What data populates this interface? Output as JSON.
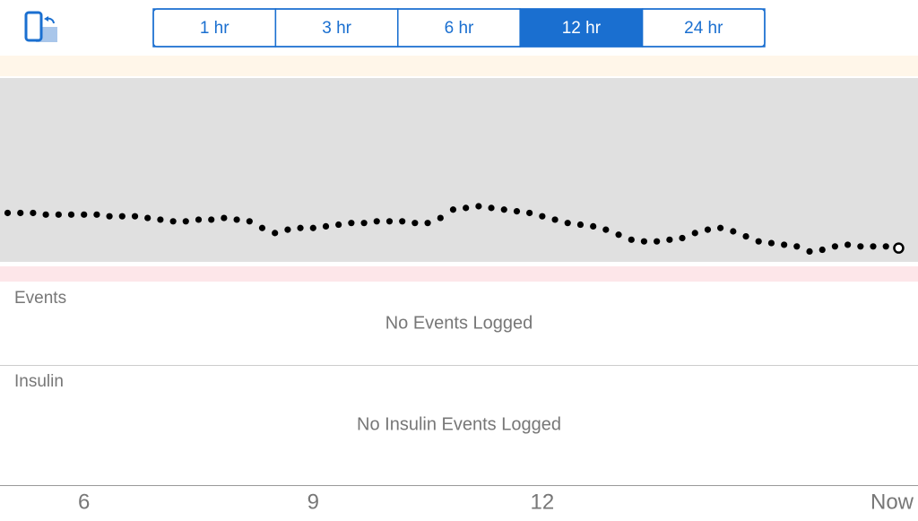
{
  "segments": {
    "labels": [
      "1 hr",
      "3 hr",
      "6 hr",
      "12 hr",
      "24 hr"
    ],
    "selected": 3
  },
  "chart_data": {
    "type": "scatter",
    "color": "#000000",
    "x": [
      5,
      5.167,
      5.333,
      5.5,
      5.667,
      5.833,
      6,
      6.167,
      6.333,
      6.5,
      6.667,
      6.833,
      7,
      7.167,
      7.333,
      7.5,
      7.667,
      7.833,
      8,
      8.167,
      8.333,
      8.5,
      8.667,
      8.833,
      9,
      9.167,
      9.333,
      9.5,
      9.667,
      9.833,
      10,
      10.167,
      10.333,
      10.5,
      10.667,
      10.833,
      11,
      11.167,
      11.333,
      11.5,
      11.667,
      11.833,
      12,
      12.167,
      12.333,
      12.5,
      12.667,
      12.833,
      13,
      13.167,
      13.333,
      13.5,
      13.667,
      13.833,
      14,
      14.167,
      14.333,
      14.5,
      14.667,
      14.833,
      15,
      15.167,
      15.333,
      15.5,
      15.667,
      15.833,
      16,
      16.167,
      16.333,
      16.5,
      16.667
    ],
    "values": [
      99,
      99,
      99,
      98,
      98,
      98,
      98,
      98,
      97,
      97,
      97,
      96,
      95,
      94,
      94,
      95,
      95,
      96,
      95,
      94,
      90,
      87,
      89,
      90,
      90,
      91,
      92,
      93,
      93,
      94,
      94,
      94,
      93,
      93,
      96,
      101,
      102,
      103,
      102,
      101,
      100,
      99,
      97,
      95,
      93,
      92,
      91,
      89,
      86,
      83,
      82,
      82,
      83,
      84,
      87,
      89,
      90,
      88,
      85,
      82,
      81,
      80,
      79,
      76,
      77,
      79,
      80,
      79,
      79,
      79,
      78
    ],
    "xlim": [
      4.9,
      16.92
    ],
    "ylim": [
      58,
      193
    ],
    "xticks": [
      6,
      9,
      12,
      {
        "value": 16.667,
        "label": "Now"
      }
    ]
  },
  "events": {
    "title": "Events",
    "empty": "No Events Logged"
  },
  "insulin": {
    "title": "Insulin",
    "empty": "No Insulin Events Logged"
  }
}
